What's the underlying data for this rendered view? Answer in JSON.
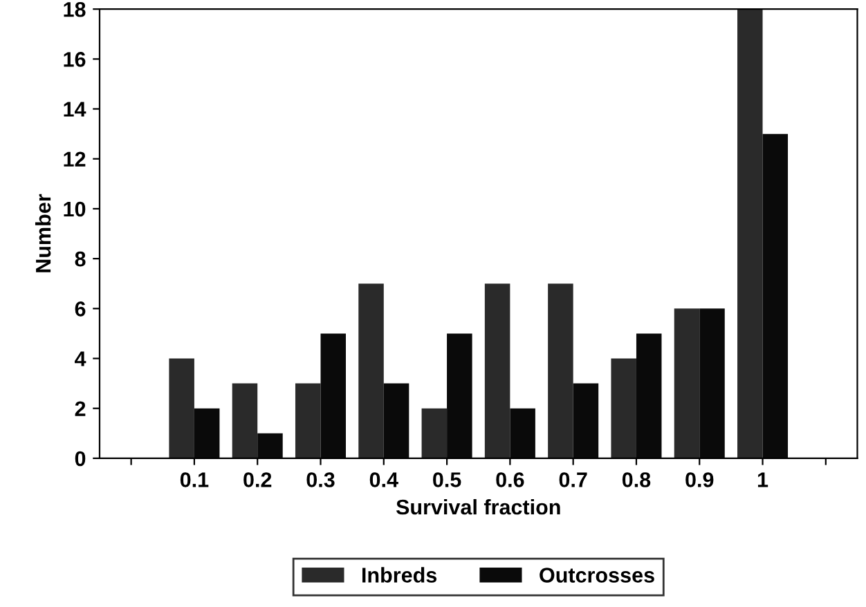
{
  "chart_data": {
    "type": "bar",
    "xlabel": "Survival fraction",
    "ylabel": "Number",
    "categories": [
      null,
      "0.1",
      "0.2",
      "0.3",
      "0.4",
      "0.5",
      "0.6",
      "0.7",
      "0.8",
      "0.9",
      "1",
      null
    ],
    "series": [
      {
        "name": "Inbreds",
        "color": "#2a2a2a",
        "values": [
          null,
          4,
          3,
          3,
          7,
          2,
          7,
          7,
          4,
          6,
          18,
          null
        ]
      },
      {
        "name": "Outcrosses",
        "color": "#0a0a0a",
        "values": [
          null,
          2,
          1,
          5,
          3,
          5,
          2,
          3,
          5,
          6,
          13,
          null
        ]
      }
    ],
    "ylim": [
      0,
      18
    ],
    "yticks": [
      0,
      2,
      4,
      6,
      8,
      10,
      12,
      14,
      16,
      18
    ],
    "grid": false,
    "legend": "bottom"
  }
}
